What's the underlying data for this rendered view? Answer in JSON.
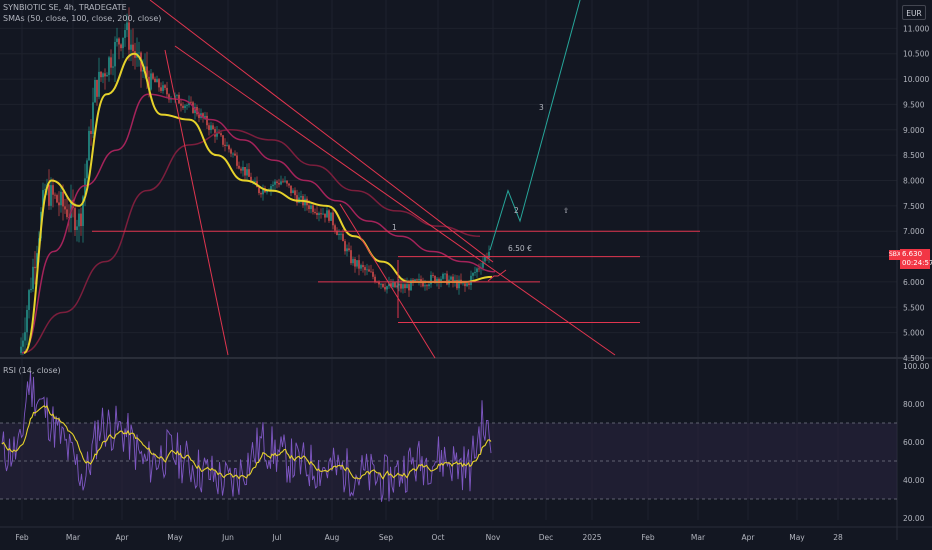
{
  "header": {
    "symbol_line": "SYNBIOTIC SE, 4h, TRADEGATE",
    "sma_line": "SMAs (50, close, 100, close, 200, close)",
    "rsi_line": "RSI (14, close)",
    "currency": "EUR"
  },
  "price_badge": {
    "flag": "SBX",
    "price": "6.630",
    "countdown": "00:24:57"
  },
  "annotations": {
    "target_price": "6.50 €",
    "wave_3": "3",
    "wave_2": "2",
    "wave_1": "1",
    "up_arrow": "⇧"
  },
  "colors": {
    "background": "#131722",
    "grid": "#1e222d",
    "up_candle": "#26a69a",
    "down_candle": "#ef5350",
    "sma50": "#e6d22b",
    "sma100": "#a4235a",
    "sma200": "#7b1e3c",
    "trendline": "#e0354f",
    "projection": "#26a69a",
    "rsi": "#7e57c2",
    "rsi_ma": "#e6d22b",
    "rsi_band": "#2a2440"
  },
  "chart_data": [
    {
      "type": "candlestick",
      "title": "SYNBIOTIC SE, 4h, TRADEGATE",
      "x_ticks": [
        "Feb",
        "Mar",
        "Apr",
        "May",
        "Jun",
        "Jul",
        "Aug",
        "Sep",
        "Oct",
        "Nov",
        "Dec",
        "2025",
        "Feb",
        "Mar",
        "Apr",
        "May",
        "28"
      ],
      "y_ticks": [
        "11.000",
        "10.500",
        "10.000",
        "9.500",
        "9.000",
        "8.500",
        "8.000",
        "7.500",
        "7.000",
        "6.500",
        "6.000",
        "5.500",
        "5.000",
        "4.500"
      ],
      "ylim": [
        4.5,
        11.5
      ],
      "close_series_by_month": [
        {
          "x": "Feb",
          "y": 4.6
        },
        {
          "x": "Feb",
          "y": 7.8
        },
        {
          "x": "Mar",
          "y": 7.2
        },
        {
          "x": "Mar",
          "y": 9.8
        },
        {
          "x": "Apr",
          "y": 11.0
        },
        {
          "x": "Apr",
          "y": 10.2
        },
        {
          "x": "May",
          "y": 9.7
        },
        {
          "x": "May",
          "y": 9.4
        },
        {
          "x": "Jun",
          "y": 8.6
        },
        {
          "x": "Jun",
          "y": 7.8
        },
        {
          "x": "Jul",
          "y": 8.0
        },
        {
          "x": "Jul",
          "y": 7.6
        },
        {
          "x": "Aug",
          "y": 7.3
        },
        {
          "x": "Aug",
          "y": 6.4
        },
        {
          "x": "Sep",
          "y": 5.9
        },
        {
          "x": "Sep",
          "y": 5.9
        },
        {
          "x": "Oct",
          "y": 6.1
        },
        {
          "x": "Oct",
          "y": 5.9
        },
        {
          "x": "Oct",
          "y": 6.63
        }
      ],
      "sma50": [
        4.6,
        8.0,
        7.5,
        9.7,
        10.5,
        9.3,
        9.2,
        8.5,
        8.0,
        7.8,
        7.6,
        7.5,
        6.9,
        6.4,
        6.0,
        6.0,
        6.0,
        6.1
      ],
      "sma100": [
        4.6,
        6.6,
        7.9,
        8.6,
        9.7,
        9.6,
        9.2,
        8.8,
        8.4,
        8.0,
        7.6,
        7.2,
        6.9,
        6.6,
        6.4,
        6.2
      ],
      "sma200": [
        4.6,
        5.4,
        6.4,
        7.8,
        8.7,
        9.0,
        8.8,
        8.3,
        7.8,
        7.4,
        7.1,
        6.9
      ],
      "horizontal_levels": [
        7.0,
        6.5,
        6.0,
        5.2
      ],
      "projection": [
        6.63,
        7.8,
        7.2,
        11.7
      ],
      "projection_label": "3"
    },
    {
      "type": "line",
      "title": "RSI (14, close)",
      "y_ticks": [
        "100.00",
        "80.00",
        "60.00",
        "40.00",
        "20.00"
      ],
      "ylim": [
        20,
        100
      ],
      "overbought": 70,
      "oversold": 30,
      "midline": 50,
      "rsi_by_month": [
        {
          "x": "Feb",
          "y": 55
        },
        {
          "x": "Feb",
          "y": 92
        },
        {
          "x": "Mar",
          "y": 40
        },
        {
          "x": "Mar",
          "y": 70
        },
        {
          "x": "Apr",
          "y": 65
        },
        {
          "x": "Apr",
          "y": 48
        },
        {
          "x": "May",
          "y": 55
        },
        {
          "x": "May",
          "y": 45
        },
        {
          "x": "Jun",
          "y": 38
        },
        {
          "x": "Jun",
          "y": 60
        },
        {
          "x": "Jul",
          "y": 52
        },
        {
          "x": "Jul",
          "y": 48
        },
        {
          "x": "Aug",
          "y": 46
        },
        {
          "x": "Aug",
          "y": 44
        },
        {
          "x": "Sep",
          "y": 40
        },
        {
          "x": "Sep",
          "y": 48
        },
        {
          "x": "Oct",
          "y": 52
        },
        {
          "x": "Oct",
          "y": 46
        },
        {
          "x": "Oct",
          "y": 70
        },
        {
          "x": "Oct",
          "y": 58
        }
      ]
    }
  ]
}
